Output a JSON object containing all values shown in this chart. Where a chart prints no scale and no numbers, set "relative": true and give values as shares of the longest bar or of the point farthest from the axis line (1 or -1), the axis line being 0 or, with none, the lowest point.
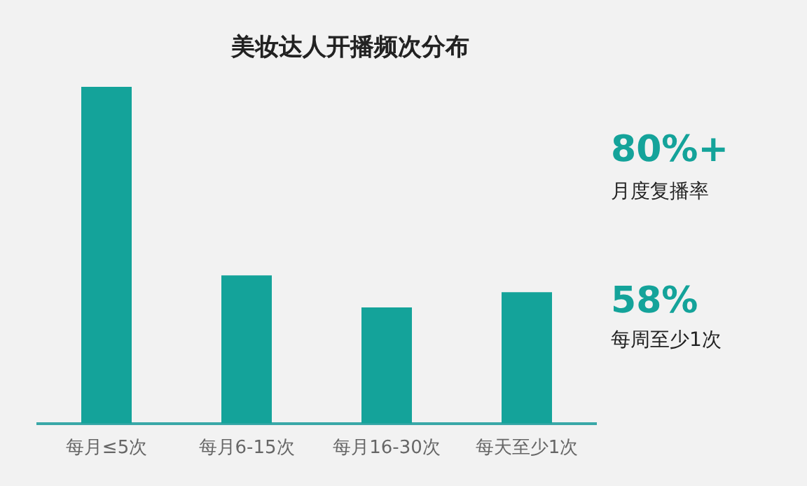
{
  "chart_data": {
    "type": "bar",
    "title": "美妆达人开播频次分布",
    "categories": [
      "每月≤5次",
      "每月6-15次",
      "每月16-30次",
      "每天至少1次"
    ],
    "values": [
      1,
      0.44,
      0.345,
      0.39
    ],
    "color": "#14a39a",
    "relative": true,
    "legend": false,
    "grid": false,
    "annotations": [
      "80%+",
      "月度复播率",
      "58%",
      "每周至少1次"
    ]
  }
}
